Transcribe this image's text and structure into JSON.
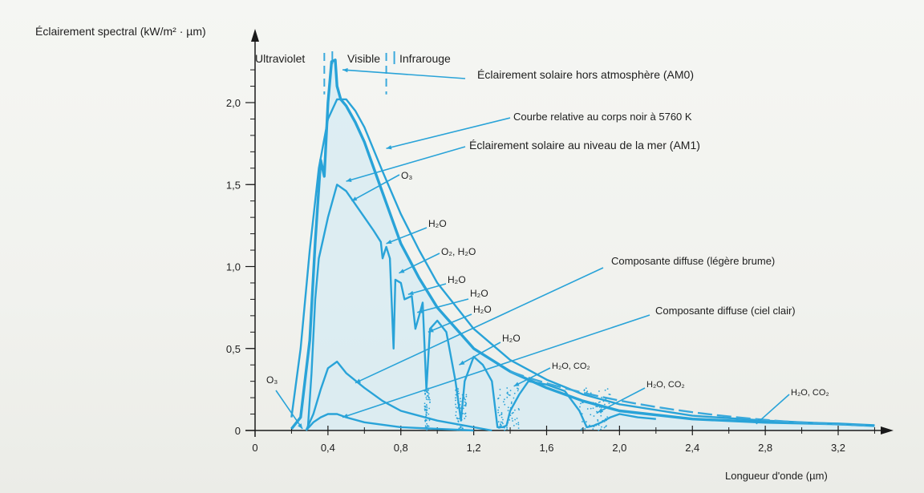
{
  "chart_data": {
    "type": "line",
    "ylabel": "Éclairement spectral (kW/m² · µm)",
    "xlabel": "Longueur d'onde (µm)",
    "xlim": [
      0,
      3.4
    ],
    "ylim": [
      0,
      2.3
    ],
    "x_ticks": [
      "0",
      "0,4",
      "0,8",
      "1,2",
      "1,6",
      "2,0",
      "2,4",
      "2,8",
      "3,2"
    ],
    "x_tick_values": [
      0,
      0.4,
      0.8,
      1.2,
      1.6,
      2.0,
      2.4,
      2.8,
      3.2
    ],
    "y_ticks": [
      "0",
      "0,5",
      "1,0",
      "1,5",
      "2,0"
    ],
    "y_tick_values": [
      0,
      0.5,
      1.0,
      1.5,
      2.0
    ],
    "regions": [
      {
        "label": "Ultraviolet",
        "boundary": 0.38
      },
      {
        "label": "Visible",
        "boundary": 0.72
      },
      {
        "label": "Infrarouge"
      }
    ],
    "series": [
      {
        "name": "Éclairement solaire hors atmosphère (AM0)",
        "x": [
          0.2,
          0.25,
          0.3,
          0.33,
          0.36,
          0.38,
          0.4,
          0.42,
          0.44,
          0.45,
          0.47,
          0.5,
          0.55,
          0.6,
          0.7,
          0.8,
          0.9,
          1.0,
          1.2,
          1.4,
          1.6,
          1.8,
          2.0,
          2.4,
          2.8,
          3.2,
          3.4
        ],
        "y": [
          0.01,
          0.08,
          0.55,
          1.15,
          1.65,
          1.55,
          2.0,
          2.25,
          2.26,
          2.1,
          2.02,
          1.98,
          1.88,
          1.76,
          1.45,
          1.14,
          0.93,
          0.75,
          0.5,
          0.36,
          0.26,
          0.18,
          0.12,
          0.07,
          0.05,
          0.04,
          0.03
        ]
      },
      {
        "name": "Courbe relative au corps noir à 5760 K",
        "x": [
          0.2,
          0.25,
          0.3,
          0.35,
          0.4,
          0.45,
          0.5,
          0.55,
          0.6,
          0.7,
          0.8,
          0.9,
          1.0,
          1.2,
          1.4,
          1.6,
          1.8,
          2.0,
          2.4,
          2.8,
          3.2,
          3.4
        ],
        "y": [
          0.08,
          0.5,
          1.1,
          1.6,
          1.9,
          2.02,
          2.02,
          1.95,
          1.85,
          1.58,
          1.32,
          1.1,
          0.9,
          0.62,
          0.43,
          0.31,
          0.22,
          0.16,
          0.09,
          0.06,
          0.04,
          0.03
        ]
      },
      {
        "name": "Éclairement solaire au niveau de la mer (AM1)",
        "x": [
          0.29,
          0.31,
          0.33,
          0.35,
          0.37,
          0.4,
          0.45,
          0.5,
          0.55,
          0.6,
          0.65,
          0.69,
          0.7,
          0.72,
          0.74,
          0.76,
          0.77,
          0.8,
          0.82,
          0.86,
          0.88,
          0.9,
          0.92,
          0.94,
          0.96,
          1.0,
          1.05,
          1.1,
          1.13,
          1.15,
          1.2,
          1.25,
          1.3,
          1.33,
          1.36,
          1.38,
          1.4,
          1.45,
          1.5,
          1.6,
          1.7,
          1.78,
          1.82,
          1.86,
          1.9,
          1.95,
          2.0,
          2.1,
          2.2
        ],
        "y": [
          0.02,
          0.35,
          0.8,
          1.05,
          1.15,
          1.3,
          1.5,
          1.46,
          1.38,
          1.3,
          1.22,
          1.15,
          1.05,
          1.12,
          1.05,
          0.5,
          0.92,
          0.9,
          0.8,
          0.82,
          0.62,
          0.7,
          0.78,
          0.25,
          0.62,
          0.67,
          0.6,
          0.3,
          0.06,
          0.3,
          0.45,
          0.4,
          0.3,
          0.02,
          0.02,
          0.03,
          0.12,
          0.22,
          0.3,
          0.28,
          0.24,
          0.12,
          0.02,
          0.03,
          0.05,
          0.08,
          0.1,
          0.08,
          0.07
        ]
      },
      {
        "name": "Composante diffuse (légère brume)",
        "x": [
          0.28,
          0.32,
          0.36,
          0.4,
          0.45,
          0.5,
          0.6,
          0.7,
          0.8,
          1.0,
          1.2,
          1.3
        ],
        "y": [
          0.0,
          0.1,
          0.25,
          0.38,
          0.42,
          0.35,
          0.26,
          0.18,
          0.12,
          0.06,
          0.02,
          0.0
        ]
      },
      {
        "name": "Composante diffuse (ciel clair)",
        "x": [
          0.28,
          0.32,
          0.36,
          0.4,
          0.45,
          0.5,
          0.6,
          0.8,
          1.0,
          1.2
        ],
        "y": [
          0.0,
          0.05,
          0.08,
          0.1,
          0.1,
          0.08,
          0.05,
          0.02,
          0.01,
          0.0
        ]
      }
    ],
    "annotations": [
      {
        "text": "Éclairement solaire hors atmosphère (AM0)",
        "x": 0.45,
        "y": 2.2
      },
      {
        "text": "Courbe relative au corps noir à 5760 K",
        "x": 0.7,
        "y": 1.65
      },
      {
        "text": "Éclairement solaire au niveau de la mer (AM1)",
        "x": 0.5,
        "y": 1.48
      },
      {
        "text": "O₃",
        "x": 0.5,
        "y": 1.4
      },
      {
        "text": "H₂O",
        "x": 0.73,
        "y": 1.12
      },
      {
        "text": "O₂, H₂O",
        "x": 0.76,
        "y": 0.9
      },
      {
        "text": "H₂O",
        "x": 0.83,
        "y": 0.8
      },
      {
        "text": "H₂O",
        "x": 0.88,
        "y": 0.68
      },
      {
        "text": "H₂O",
        "x": 0.94,
        "y": 0.6
      },
      {
        "text": "H₂O",
        "x": 1.13,
        "y": 0.4
      },
      {
        "text": "H₂O, CO₂",
        "x": 1.4,
        "y": 0.28
      },
      {
        "text": "H₂O, CO₂",
        "x": 1.88,
        "y": 0.1
      },
      {
        "text": "H₂O, CO₂",
        "x": 2.7,
        "y": 0.04
      },
      {
        "text": "O₃",
        "x": 0.3,
        "y": 0.01
      },
      {
        "text": "Composante diffuse (légère brume)",
        "x": 0.5,
        "y": 0.3
      },
      {
        "text": "Composante diffuse (ciel clair)",
        "x": 0.45,
        "y": 0.08
      }
    ],
    "colors": {
      "curve": "#29a3d8",
      "fill": "#d6ebf3",
      "axis": "#1a1a1a",
      "dashed": "#3aa9dc"
    },
    "grid": false
  }
}
